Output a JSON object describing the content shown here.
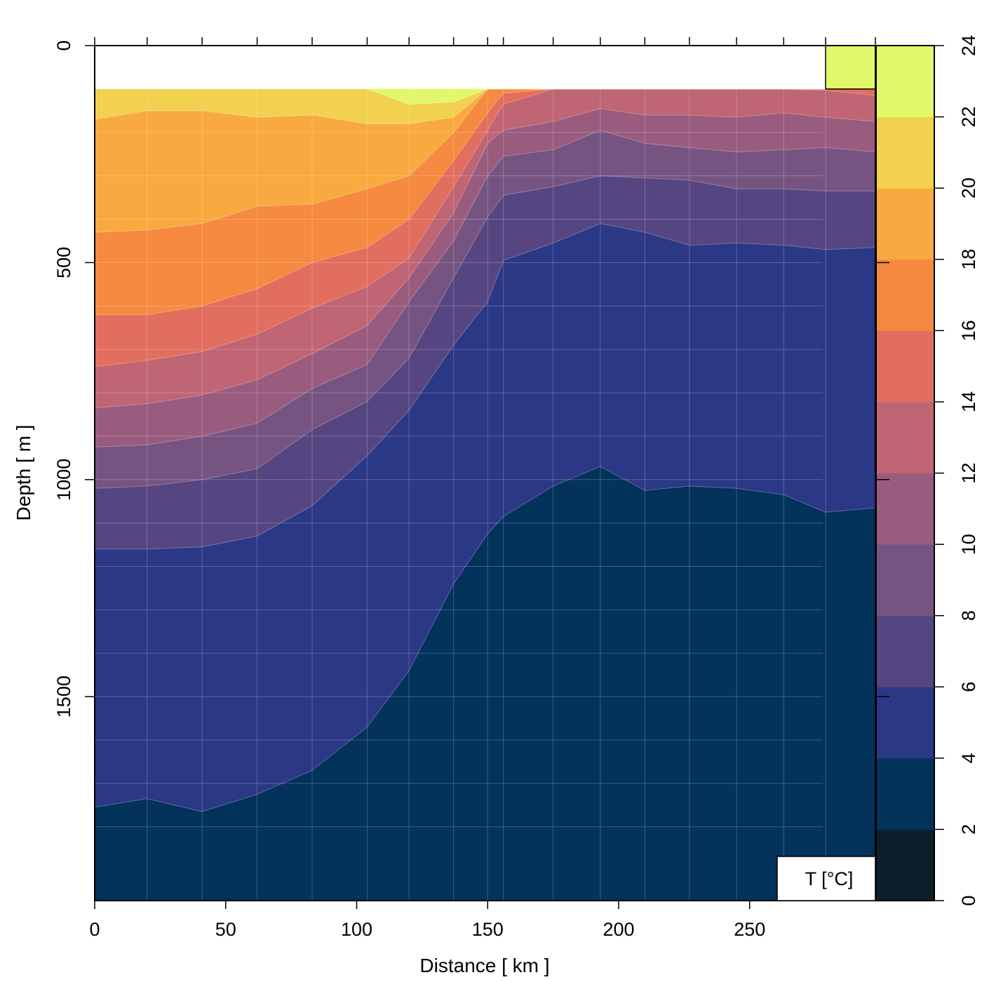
{
  "chart_data": {
    "type": "contour",
    "xlabel": "Distance [ km ]",
    "ylabel": "Depth [ m ]",
    "legend_title": "T [°C]",
    "xlim": [
      0,
      298
    ],
    "ylim": [
      1970,
      0
    ],
    "x_ticks": [
      0,
      50,
      100,
      150,
      200,
      250
    ],
    "y_ticks": [
      0,
      500,
      1000,
      1500
    ],
    "grid": true,
    "data_top_depth": 100,
    "stations_km": [
      0,
      20,
      41,
      62,
      83,
      104,
      120,
      137,
      150,
      156,
      175,
      193,
      210,
      227,
      245,
      263,
      279,
      298
    ],
    "isotherm_depths_m": {
      "22": [
        100,
        100,
        100,
        100,
        100,
        100,
        135,
        130,
        100,
        100,
        100,
        100,
        100,
        100,
        100,
        100,
        100,
        100
      ],
      "20": [
        170,
        150,
        150,
        165,
        160,
        180,
        180,
        165,
        100,
        100,
        100,
        100,
        100,
        100,
        100,
        100,
        100,
        100
      ],
      "18": [
        430,
        425,
        410,
        370,
        365,
        330,
        300,
        200,
        100,
        100,
        100,
        100,
        100,
        100,
        100,
        100,
        100,
        100
      ],
      "16": [
        620,
        620,
        600,
        560,
        500,
        465,
        400,
        265,
        155,
        110,
        100,
        100,
        100,
        100,
        100,
        100,
        100,
        100
      ],
      "14": [
        740,
        725,
        705,
        665,
        605,
        555,
        490,
        325,
        195,
        135,
        100,
        100,
        100,
        100,
        100,
        100,
        103,
        115
      ],
      "12": [
        835,
        825,
        805,
        770,
        710,
        645,
        535,
        385,
        225,
        195,
        175,
        145,
        160,
        160,
        165,
        155,
        165,
        175
      ],
      "10": [
        925,
        920,
        900,
        870,
        790,
        735,
        590,
        450,
        300,
        255,
        240,
        195,
        225,
        235,
        245,
        240,
        235,
        245
      ],
      "8": [
        1020,
        1015,
        1000,
        975,
        885,
        820,
        720,
        535,
        395,
        345,
        325,
        300,
        305,
        310,
        330,
        330,
        335,
        335
      ],
      "6": [
        1160,
        1160,
        1155,
        1130,
        1060,
        945,
        840,
        690,
        590,
        495,
        455,
        410,
        430,
        460,
        455,
        460,
        470,
        465
      ],
      "4": [
        1755,
        1735,
        1765,
        1725,
        1670,
        1570,
        1440,
        1240,
        1125,
        1085,
        1015,
        970,
        1025,
        1015,
        1020,
        1035,
        1075,
        1065
      ]
    },
    "surface_patch": {
      "km_range": [
        279,
        298
      ],
      "depth_range": [
        0,
        100
      ],
      "band": "22-24"
    },
    "colorbar": {
      "levels": [
        0,
        2,
        4,
        6,
        8,
        10,
        12,
        14,
        16,
        18,
        20,
        22,
        24
      ],
      "tick_labels": [
        "0",
        "2",
        "4",
        "6",
        "8",
        "10",
        "12",
        "14",
        "16",
        "18",
        "20",
        "22",
        "24"
      ],
      "colors": [
        "#0c1f2b",
        "#03325a",
        "#2b3886",
        "#554682",
        "#765482",
        "#995c7e",
        "#bf6573",
        "#e26e5f",
        "#f58a40",
        "#f8aa40",
        "#f2d050",
        "#e2f86a"
      ]
    }
  }
}
